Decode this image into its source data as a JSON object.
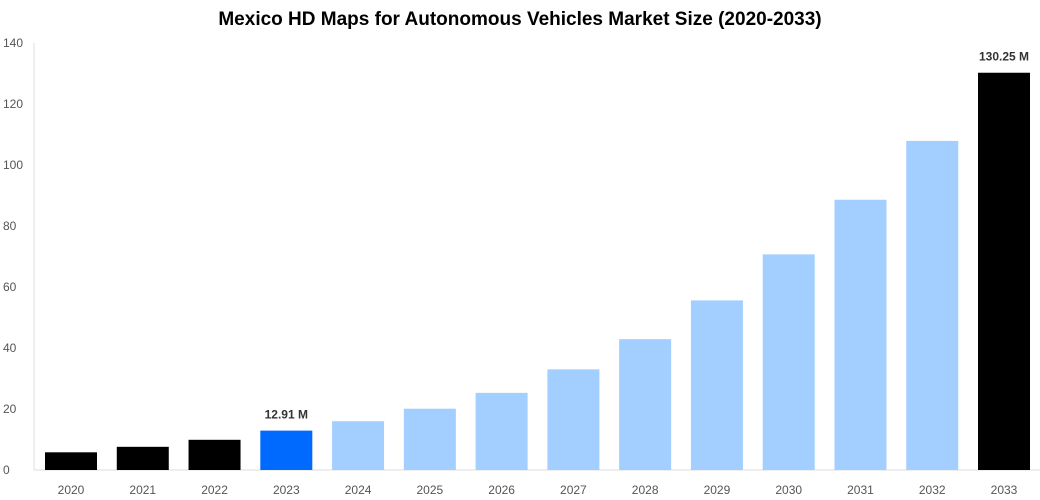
{
  "chart_data": {
    "type": "bar",
    "title": "Mexico HD Maps for Autonomous Vehicles Market Size (2020-2033)",
    "xlabel": "",
    "ylabel": "",
    "ylim": [
      0,
      140
    ],
    "yticks": [
      0,
      20,
      40,
      60,
      80,
      100,
      120,
      140
    ],
    "grid": false,
    "categories": [
      "2020",
      "2021",
      "2022",
      "2023",
      "2024",
      "2025",
      "2026",
      "2027",
      "2028",
      "2029",
      "2030",
      "2031",
      "2032",
      "2033"
    ],
    "values": [
      5.8,
      7.6,
      9.9,
      12.91,
      16.0,
      20.1,
      25.3,
      33.0,
      42.9,
      55.6,
      70.7,
      88.6,
      107.9,
      130.25
    ],
    "bar_colors": [
      "#000000",
      "#000000",
      "#000000",
      "#006AFF",
      "#A2CFFF",
      "#A2CFFF",
      "#A2CFFF",
      "#A2CFFF",
      "#A2CFFF",
      "#A2CFFF",
      "#A2CFFF",
      "#A2CFFF",
      "#A2CFFF",
      "#000000"
    ],
    "data_labels": [
      {
        "category": "2023",
        "text": "12.91 M"
      },
      {
        "category": "2033",
        "text": "130.25 M"
      }
    ]
  }
}
